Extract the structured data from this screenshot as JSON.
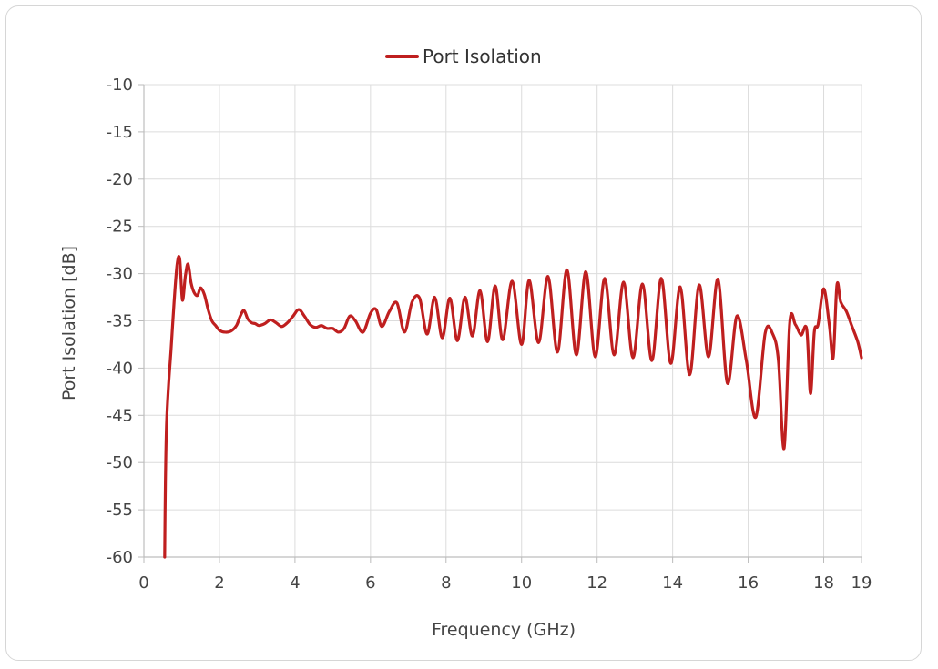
{
  "chart_data": {
    "type": "line",
    "legend": {
      "position": "top-center"
    },
    "xlabel": "Frequency (GHz)",
    "ylabel": "Port Isolation [dB]",
    "xlim": [
      0,
      19
    ],
    "ylim": [
      -60,
      -10
    ],
    "xticks": [
      0,
      2,
      4,
      6,
      8,
      10,
      12,
      14,
      16,
      18,
      19
    ],
    "yticks": [
      -10,
      -15,
      -20,
      -25,
      -30,
      -35,
      -40,
      -45,
      -50,
      -55,
      -60
    ],
    "grid": true,
    "series": [
      {
        "name": "Port Isolation",
        "color": "#bf1f1f",
        "x": [
          0.55,
          0.57,
          0.6,
          0.65,
          0.72,
          0.8,
          0.88,
          0.95,
          1.02,
          1.1,
          1.17,
          1.25,
          1.33,
          1.42,
          1.5,
          1.6,
          1.7,
          1.8,
          1.9,
          2.0,
          2.15,
          2.3,
          2.45,
          2.55,
          2.65,
          2.75,
          2.85,
          2.95,
          3.05,
          3.2,
          3.35,
          3.5,
          3.65,
          3.8,
          3.95,
          4.1,
          4.25,
          4.4,
          4.55,
          4.7,
          4.85,
          5.0,
          5.15,
          5.3,
          5.45,
          5.6,
          5.8,
          6.0,
          6.15,
          6.3,
          6.5,
          6.7,
          6.9,
          7.1,
          7.3,
          7.5,
          7.7,
          7.9,
          8.1,
          8.3,
          8.5,
          8.7,
          8.9,
          9.1,
          9.3,
          9.5,
          9.75,
          10.0,
          10.2,
          10.45,
          10.7,
          10.95,
          11.2,
          11.45,
          11.7,
          11.95,
          12.2,
          12.45,
          12.7,
          12.95,
          13.2,
          13.45,
          13.7,
          13.95,
          14.2,
          14.45,
          14.7,
          14.95,
          15.2,
          15.45,
          15.7,
          15.95,
          16.2,
          16.45,
          16.65,
          16.8,
          16.95,
          17.1,
          17.25,
          17.4,
          17.55,
          17.65,
          17.75,
          17.85,
          18.0,
          18.15,
          18.25,
          18.35,
          18.45,
          18.6,
          18.75,
          18.9,
          19.0
        ],
        "values": [
          -60,
          -52,
          -46,
          -42,
          -38,
          -33,
          -29,
          -28.5,
          -32.8,
          -30.2,
          -29,
          -31,
          -32,
          -32.3,
          -31.5,
          -32.2,
          -33.8,
          -35,
          -35.5,
          -36,
          -36.2,
          -36.1,
          -35.5,
          -34.5,
          -33.9,
          -34.8,
          -35.2,
          -35.3,
          -35.5,
          -35.3,
          -34.9,
          -35.2,
          -35.6,
          -35.2,
          -34.5,
          -33.8,
          -34.5,
          -35.4,
          -35.7,
          -35.5,
          -35.8,
          -35.8,
          -36.2,
          -35.8,
          -34.5,
          -35,
          -36.2,
          -34.2,
          -33.8,
          -35.6,
          -34,
          -33.1,
          -36.2,
          -33,
          -32.6,
          -36.4,
          -32.5,
          -36.8,
          -32.6,
          -37.1,
          -32.5,
          -36.6,
          -31.8,
          -37.2,
          -31.3,
          -37,
          -30.8,
          -37.5,
          -30.7,
          -37.3,
          -30.3,
          -38.3,
          -29.6,
          -38.6,
          -29.8,
          -38.8,
          -30.5,
          -38.6,
          -30.9,
          -38.9,
          -31.1,
          -39.2,
          -30.5,
          -39.5,
          -31.4,
          -40.7,
          -31.2,
          -38.8,
          -30.6,
          -41.6,
          -34.5,
          -39.2,
          -45.2,
          -36.3,
          -36.4,
          -39.2,
          -48.5,
          -35.2,
          -35.4,
          -36.5,
          -35.9,
          -42.7,
          -36.2,
          -35.4,
          -31.6,
          -35.5,
          -38.9,
          -31.2,
          -33.0,
          -34.0,
          -35.6,
          -37.2,
          -38.9
        ]
      }
    ]
  }
}
